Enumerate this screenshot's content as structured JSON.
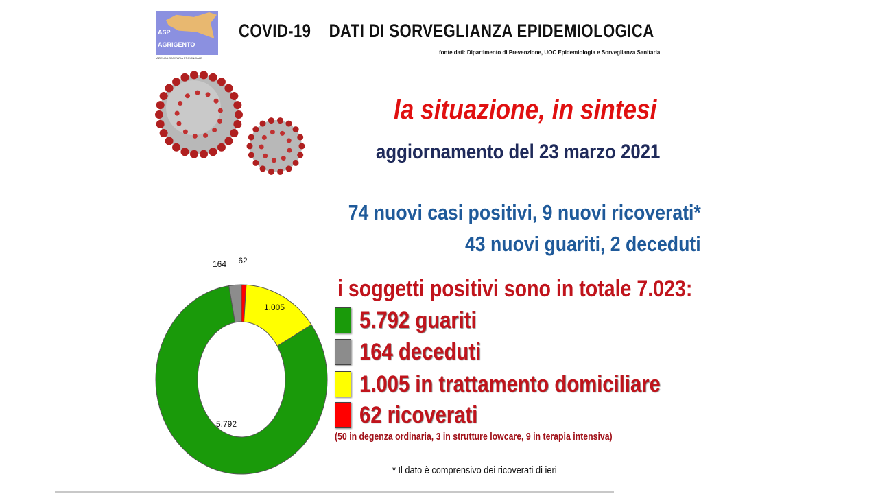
{
  "header": {
    "logo_text": [
      "ASP",
      "AGRIGENTO",
      "AZIENDA SANITARIA PROVINCIALE"
    ],
    "title": "COVID-19    DATI DI SORVEGLIANZA EPIDEMIOLOGICA",
    "source": "fonte dati: Dipartimento di Prevenzione, UOC Epidemiologia e Sorveglianza Sanitaria"
  },
  "summary": {
    "headline": "la situazione, in sintesi",
    "update": "aggiornamento del 23 marzo 2021",
    "line1": "74 nuovi casi positivi, 9 nuovi ricoverati*",
    "line2": "43 nuovi guariti, 2 deceduti",
    "total": "i soggetti positivi sono in totale 7.023:",
    "legend": [
      {
        "text": "5.792 guariti",
        "color": "#1a9a0a"
      },
      {
        "text": "164 deceduti",
        "color": "#8c8c8c"
      },
      {
        "text": "1.005 in trattamento domiciliare",
        "color": "#ffff00"
      },
      {
        "text": "62 ricoverati",
        "color": "#ff0000"
      }
    ],
    "detail": "(50 in degenza ordinaria, 3 in strutture lowcare, 9 in terapia intensiva)",
    "note": "*   Il dato è comprensivo dei ricoverati di ieri"
  },
  "chart_data": {
    "type": "pie",
    "variant": "donut",
    "categories": [
      "ricoverati",
      "trattamento domiciliare",
      "guariti",
      "deceduti"
    ],
    "values": [
      62,
      1005,
      5792,
      164
    ],
    "labels": [
      "62",
      "1.005",
      "5.792",
      "164"
    ],
    "colors": [
      "#ff0000",
      "#ffff00",
      "#1a9a0a",
      "#8c8c8c"
    ]
  }
}
